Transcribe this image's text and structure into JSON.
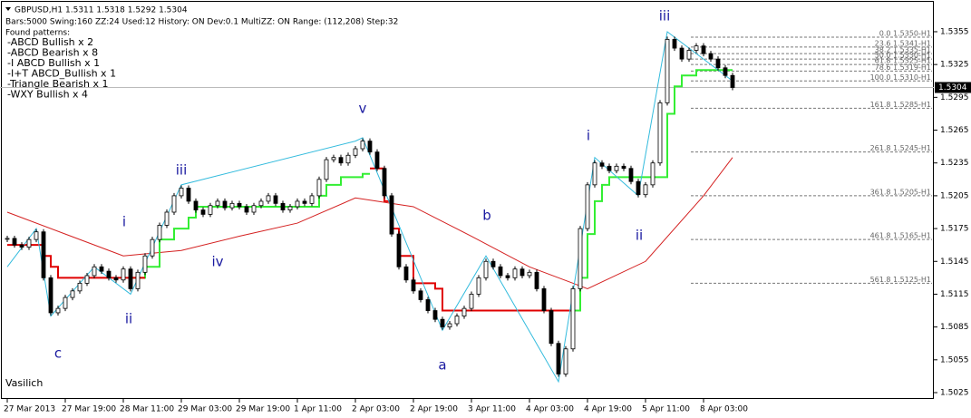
{
  "chart_data": {
    "type": "candlestick",
    "header": "GBPUSD,H1  1.5311 1.5318 1.5292 1.5304",
    "info": "Bars:5000  Swing:160  ZZ:24  Used:12  History: ON Dev:0.1  MultiZZ: ON  Range: (112,208)  Step:32",
    "patterns_title": "Found patterns:",
    "patterns": [
      {
        "text": "-ABCD Bullish x 2",
        "color": "#33cc33"
      },
      {
        "text": "-ABCD Bearish x 8",
        "color": "#e00000"
      },
      {
        "text": "-I ABCD Bullish x 1",
        "color": "#33cc33"
      },
      {
        "text": "-I+T ABCD_Bullish x 1",
        "color": "#33cc33"
      },
      {
        "text": "-Triangle Bearish x 1",
        "color": "#e00000"
      },
      {
        "text": "-WXY Bullish x 4",
        "color": "#33cc33"
      }
    ],
    "author": "Vasilich",
    "waves": [
      "c",
      "ii",
      "i",
      "iii",
      "iv",
      "v",
      "a",
      "b",
      "i",
      "ii",
      "iii"
    ],
    "xlim": [
      -1,
      127.75
    ],
    "xticks": [
      {
        "value": 0,
        "label": "27 Mar 2013"
      },
      {
        "value": 8,
        "label": "27 Mar 19:00"
      },
      {
        "value": 16,
        "label": "28 Mar 11:00"
      },
      {
        "value": 24,
        "label": "29 Mar 03:00"
      },
      {
        "value": 32,
        "label": "29 Mar 19:00"
      },
      {
        "value": 40,
        "label": "1 Apr 11:00"
      },
      {
        "value": 48,
        "label": "2 Apr 03:00"
      },
      {
        "value": 56,
        "label": "2 Apr 19:00"
      },
      {
        "value": 64,
        "label": "3 Apr 11:00"
      },
      {
        "value": 72,
        "label": "4 Apr 03:00"
      },
      {
        "value": 80,
        "label": "4 Apr 19:00"
      },
      {
        "value": 88,
        "label": "5 Apr 11:00"
      },
      {
        "value": 96,
        "label": "8 Apr 03:00"
      }
    ],
    "ylim": [
      1.50192,
      1.5384
    ],
    "yticks": [
      1.5355,
      1.5325,
      1.5295,
      1.5265,
      1.5235,
      1.5205,
      1.5175,
      1.5145,
      1.5115,
      1.5085,
      1.5055,
      1.5025
    ],
    "current_price": 1.5304,
    "series": [
      {
        "name": "GBPUSD",
        "color": "#000000",
        "values": [
          1.5166,
          1.516,
          1.5158,
          1.5165,
          1.5172,
          1.513,
          1.5098,
          1.5102,
          1.5112,
          1.5118,
          1.5125,
          1.5132,
          1.514,
          1.5136,
          1.513,
          1.5128,
          1.5138,
          1.512,
          1.5135,
          1.515,
          1.5165,
          1.5178,
          1.519,
          1.5205,
          1.5212,
          1.52,
          1.5192,
          1.5188,
          1.5196,
          1.52,
          1.5194,
          1.5198,
          1.5195,
          1.519,
          1.5196,
          1.52,
          1.5205,
          1.5198,
          1.5192,
          1.5195,
          1.52,
          1.5198,
          1.5205,
          1.522,
          1.5238,
          1.524,
          1.5235,
          1.5242,
          1.5248,
          1.5255,
          1.5245,
          1.523,
          1.5205,
          1.517,
          1.514,
          1.5128,
          1.5118,
          1.511,
          1.51,
          1.5092,
          1.5085,
          1.5088,
          1.5095,
          1.5102,
          1.5115,
          1.513,
          1.5145,
          1.514,
          1.5132,
          1.513,
          1.5138,
          1.5132,
          1.5135,
          1.512,
          1.51,
          1.507,
          1.5042,
          1.5065,
          1.512,
          1.5175,
          1.5215,
          1.5235,
          1.5232,
          1.5228,
          1.5232,
          1.523,
          1.5218,
          1.5206,
          1.5215,
          1.5235,
          1.529,
          1.5348,
          1.534,
          1.533,
          1.5338,
          1.5342,
          1.5335,
          1.533,
          1.5322,
          1.5315,
          1.5304
        ]
      },
      {
        "type": "line",
        "color": "#d42020",
        "x": [
          0,
          8,
          16,
          24,
          32,
          40,
          48,
          56,
          64,
          72,
          80,
          88,
          96,
          100
        ],
        "values": [
          1.519,
          1.517,
          1.515,
          1.5155,
          1.5168,
          1.518,
          1.5203,
          1.5195,
          1.5168,
          1.514,
          1.512,
          1.5145,
          1.5205,
          1.524
        ]
      },
      {
        "type": "step",
        "color": "#33ee33",
        "x": [
          17,
          19,
          21,
          23,
          25,
          26,
          42,
          43,
          44,
          46,
          49,
          50,
          51,
          78,
          79,
          80,
          81,
          82,
          83,
          90,
          91,
          92,
          93,
          95,
          100
        ],
        "values": [
          1.513,
          1.514,
          1.5165,
          1.5175,
          1.5185,
          1.5195,
          1.5195,
          1.5205,
          1.5215,
          1.5222,
          1.5225,
          1.5225,
          null,
          1.51,
          1.513,
          1.517,
          1.52,
          1.5215,
          1.5222,
          1.5222,
          1.528,
          1.5305,
          1.5315,
          1.532,
          1.532
        ]
      },
      {
        "type": "step",
        "color": "#e00000",
        "x": [
          0,
          4,
          5,
          6,
          7,
          19,
          20,
          50,
          52,
          53,
          54,
          56,
          59,
          60,
          78
        ],
        "values": [
          1.516,
          1.516,
          1.515,
          1.514,
          1.513,
          1.513,
          null,
          1.523,
          1.52,
          1.5175,
          1.515,
          1.5125,
          1.512,
          1.51,
          1.51
        ]
      },
      {
        "type": "line",
        "color": "#33bbdd",
        "x": [
          0,
          4,
          6,
          12,
          17,
          24,
          48,
          49,
          60,
          66,
          76,
          81,
          87,
          91,
          100
        ],
        "values": [
          1.514,
          1.5175,
          1.5095,
          1.514,
          1.5115,
          1.5215,
          1.5255,
          1.5258,
          1.5082,
          1.515,
          1.5035,
          1.524,
          1.5205,
          1.5355,
          1.531
        ]
      }
    ],
    "fib_levels": [
      {
        "value": 1.535,
        "label": "0.0 1.5350-H1"
      },
      {
        "value": 1.5341,
        "label": "23.6 1.5341-H1"
      },
      {
        "value": 1.5335,
        "label": "38.2 1.5335-H1"
      },
      {
        "value": 1.533,
        "label": "50.0 1.5330-H1"
      },
      {
        "value": 1.5325,
        "label": "61.8 1.5325-H1"
      },
      {
        "value": 1.5319,
        "label": "78.6 1.5319-H1"
      },
      {
        "value": 1.531,
        "label": "100.0 1.5310-H1"
      },
      {
        "value": 1.5285,
        "label": "161.8 1.5285-H1"
      },
      {
        "value": 1.5245,
        "label": "261.8 1.5245-H1"
      },
      {
        "value": 1.5205,
        "label": "361.8 1.5205-H1"
      },
      {
        "value": 1.5165,
        "label": "461.8 1.5165-H1"
      },
      {
        "value": 1.5125,
        "label": "561.8 1.5125-H1"
      }
    ]
  }
}
